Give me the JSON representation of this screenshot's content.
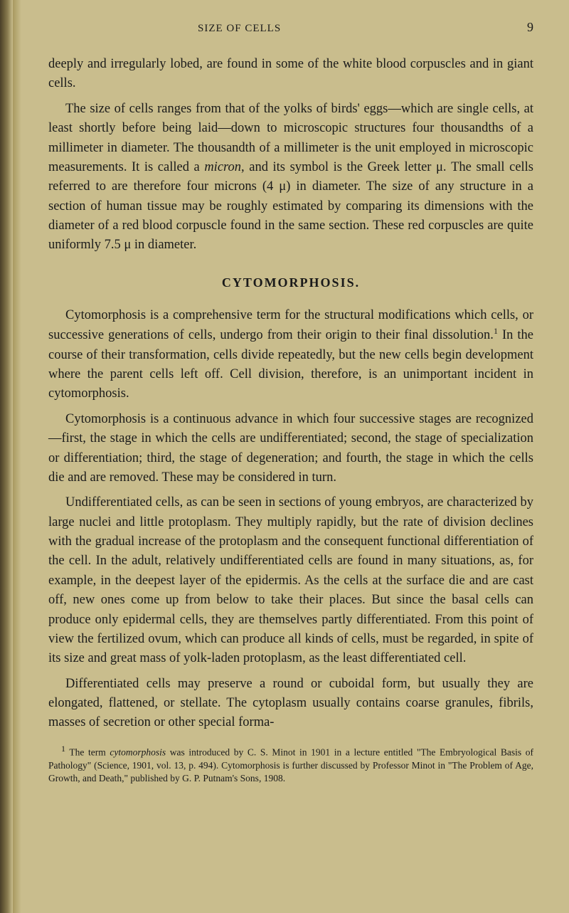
{
  "header": {
    "title": "SIZE OF CELLS",
    "page_number": "9"
  },
  "paragraphs": {
    "p1": "deeply and irregularly lobed, are found in some of the white blood corpuscles and in giant cells.",
    "p2_pre": "The size of cells ranges from that of the yolks of birds' eggs—which are single cells, at least shortly before being laid—down to microscopic structures four thousandths of a millimeter in diameter. The thousandth of a millimeter is the unit employed in microscopic measurements. It is called a ",
    "p2_micron": "micron",
    "p2_mid": ", and its symbol is the Greek letter μ. The small cells referred to are therefore four microns (4 μ) in diameter. The size of any structure in a section of human tissue may be roughly estimated by comparing its dimensions with the diameter of a red blood corpuscle found in the same section. These red corpuscles are quite uniformly 7.5 μ in diameter.",
    "section_title": "CYTOMORPHOSIS.",
    "p3_pre": "Cytomorphosis is a comprehensive term for the structural modifications which cells, or successive generations of cells, undergo from their origin to their final dissolution.",
    "p3_sup": "1",
    "p3_post": " In the course of their transformation, cells divide repeatedly, but the new cells begin development where the parent cells left off. Cell division, therefore, is an unimportant incident in cytomorphosis.",
    "p4": "Cytomorphosis is a continuous advance in which four successive stages are recognized—first, the stage in which the cells are undifferentiated; second, the stage of specialization or differentiation; third, the stage of degeneration; and fourth, the stage in which the cells die and are removed. These may be considered in turn.",
    "p5": "Undifferentiated cells, as can be seen in sections of young embryos, are characterized by large nuclei and little protoplasm. They multiply rapidly, but the rate of division declines with the gradual increase of the protoplasm and the consequent functional differentiation of the cell. In the adult, relatively undifferentiated cells are found in many situations, as, for example, in the deepest layer of the epidermis. As the cells at the surface die and are cast off, new ones come up from below to take their places. But since the basal cells can produce only epidermal cells, they are themselves partly differentiated. From this point of view the fertilized ovum, which can produce all kinds of cells, must be regarded, in spite of its size and great mass of yolk-laden protoplasm, as the least differentiated cell.",
    "p6": "Differentiated cells may preserve a round or cuboidal form, but usually they are elongated, flattened, or stellate. The cytoplasm usually contains coarse granules, fibrils, masses of secretion or other special forma-"
  },
  "footnote": {
    "sup": "1",
    "pre": " The term ",
    "cyto": "cytomorphosis",
    "post": " was introduced by C. S. Minot in 1901 in a lecture entitled \"The Embryological Basis of Pathology\" (Science, 1901, vol. 13, p. 494). Cytomorphosis is further discussed by Professor Minot in \"The Problem of Age, Growth, and Death,\" published by G. P. Putnam's Sons, 1908."
  },
  "colors": {
    "background": "#c9bd8d",
    "text": "#1a1a1a"
  }
}
